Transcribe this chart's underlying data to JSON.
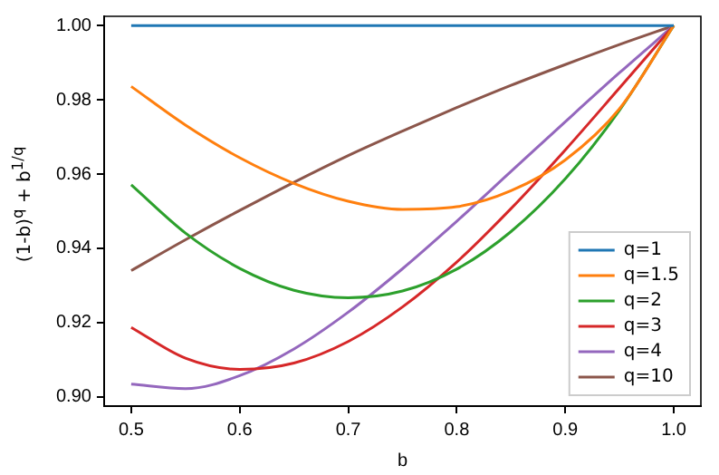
{
  "chart_data": {
    "type": "line",
    "xlabel": "b",
    "ylabel": "(1-b)$^{q}$ + b$^{1/q}$",
    "x": [
      0.5,
      0.55,
      0.6,
      0.65,
      0.7,
      0.75,
      0.8,
      0.85,
      0.9,
      0.95,
      1.0
    ],
    "series": [
      {
        "name": "q=1",
        "color": "#1f77b4",
        "values": [
          1,
          1,
          1,
          1,
          1,
          1,
          1,
          1,
          1,
          1,
          1
        ]
      },
      {
        "name": "q=1.5",
        "color": "#ff7f0e",
        "values": [
          0.9836,
          0.9732,
          0.9644,
          0.9575,
          0.9527,
          0.9505,
          0.9512,
          0.9555,
          0.9638,
          0.9776,
          1
        ]
      },
      {
        "name": "q=2",
        "color": "#2ca02c",
        "values": [
          0.9571,
          0.9441,
          0.9346,
          0.9287,
          0.9267,
          0.9285,
          0.9344,
          0.9445,
          0.9587,
          0.9772,
          1
        ]
      },
      {
        "name": "q=3",
        "color": "#d62728",
        "values": [
          0.9187,
          0.9104,
          0.9074,
          0.9091,
          0.9149,
          0.9242,
          0.9363,
          0.9507,
          0.9665,
          0.9832,
          1
        ]
      },
      {
        "name": "q=4",
        "color": "#9467bd",
        "values": [
          0.9034,
          0.9022,
          0.9057,
          0.9129,
          0.9228,
          0.9345,
          0.9473,
          0.9607,
          0.9741,
          0.9873,
          1
        ]
      },
      {
        "name": "q=10",
        "color": "#8c564b",
        "values": [
          0.934,
          0.9423,
          0.9502,
          0.9578,
          0.965,
          0.9716,
          0.9779,
          0.9839,
          0.9895,
          0.9949,
          1
        ]
      }
    ],
    "xlim": [
      0.475,
      1.025
    ],
    "ylim": [
      0.8975,
      1.0025
    ],
    "xticks": [
      {
        "value": 0.5,
        "label": "0.5"
      },
      {
        "value": 0.6,
        "label": "0.6"
      },
      {
        "value": 0.7,
        "label": "0.7"
      },
      {
        "value": 0.8,
        "label": "0.8"
      },
      {
        "value": 0.9,
        "label": "0.9"
      },
      {
        "value": 1.0,
        "label": "1.0"
      }
    ],
    "yticks": [
      {
        "value": 0.9,
        "label": "0.90"
      },
      {
        "value": 0.92,
        "label": "0.92"
      },
      {
        "value": 0.94,
        "label": "0.94"
      },
      {
        "value": 0.96,
        "label": "0.96"
      },
      {
        "value": 0.98,
        "label": "0.98"
      },
      {
        "value": 1.0,
        "label": "1.00"
      }
    ],
    "grid": false,
    "legend": "bottom right",
    "marker": "none",
    "line_style": "solid"
  }
}
